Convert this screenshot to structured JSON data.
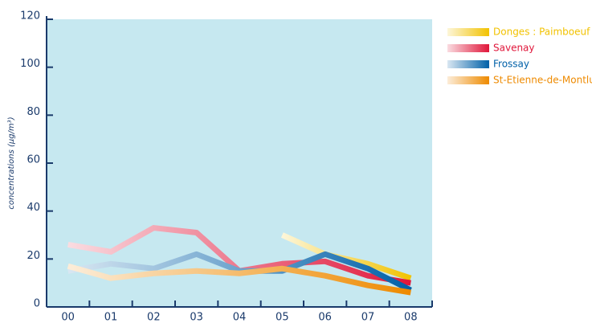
{
  "chart_data": {
    "type": "line",
    "y_label": "concentrations (µg/m³)",
    "categories": [
      "00",
      "01",
      "02",
      "03",
      "04",
      "05",
      "06",
      "07",
      "08"
    ],
    "series": [
      {
        "name": "Donges : Paimboeuf",
        "color": "#f2c200",
        "values": [
          null,
          null,
          null,
          null,
          null,
          30,
          22,
          18,
          12
        ]
      },
      {
        "name": "Savenay",
        "color": "#e0163a",
        "values": [
          26,
          23,
          33,
          31,
          15,
          18,
          19,
          13,
          10
        ]
      },
      {
        "name": "Frossay",
        "color": "#0060a8",
        "values": [
          15,
          18,
          16,
          22,
          15,
          15,
          22,
          16,
          7
        ]
      },
      {
        "name": "St-Etienne-de-Montluc",
        "color": "#ee8a00",
        "values": [
          17,
          12,
          14,
          15,
          14,
          16,
          13,
          9,
          6
        ]
      }
    ],
    "ylim": [
      0,
      120
    ],
    "yticks": [
      0,
      20,
      40,
      60,
      80,
      100,
      120
    ],
    "grid": false,
    "legend": "right"
  }
}
